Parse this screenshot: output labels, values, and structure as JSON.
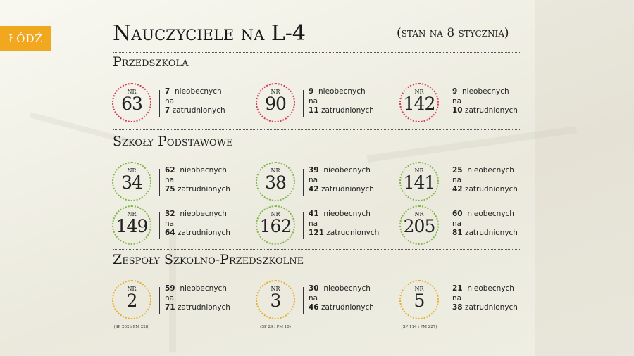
{
  "logo": "ŁÓDŹ",
  "title": "Nauczyciele na L-4",
  "date": "(stan na 8 stycznia)",
  "colors": {
    "przedszkola": "#d6395a",
    "podstawowe": "#7fb84a",
    "zespoly": "#e8ad2a",
    "logo": "#f1a81e"
  },
  "labels": {
    "nr": "NR",
    "absent": "nieobecnych",
    "on": "na",
    "employed": "zatrudnionych"
  },
  "sections": [
    {
      "title": "Przedszkola",
      "items": [
        {
          "nr": "63",
          "absent": "7",
          "employed": "7"
        },
        {
          "nr": "90",
          "absent": "9",
          "employed": "11"
        },
        {
          "nr": "142",
          "absent": "9",
          "employed": "10"
        }
      ]
    },
    {
      "title": "Szkoły Podstawowe",
      "items": [
        {
          "nr": "34",
          "absent": "62",
          "employed": "75"
        },
        {
          "nr": "38",
          "absent": "39",
          "employed": "42"
        },
        {
          "nr": "141",
          "absent": "25",
          "employed": "42"
        },
        {
          "nr": "149",
          "absent": "32",
          "employed": "64"
        },
        {
          "nr": "162",
          "absent": "41",
          "employed": "121"
        },
        {
          "nr": "205",
          "absent": "60",
          "employed": "81"
        }
      ]
    },
    {
      "title": "Zespoły Szkolno-Przedszkolne",
      "items": [
        {
          "nr": "2",
          "absent": "59",
          "employed": "71",
          "note": "(SP 202 i PM 228)"
        },
        {
          "nr": "3",
          "absent": "30",
          "employed": "46",
          "note": "(SP 29 i PM 10)"
        },
        {
          "nr": "5",
          "absent": "21",
          "employed": "38",
          "note": "(SP 114 i PM 227)"
        }
      ]
    }
  ]
}
